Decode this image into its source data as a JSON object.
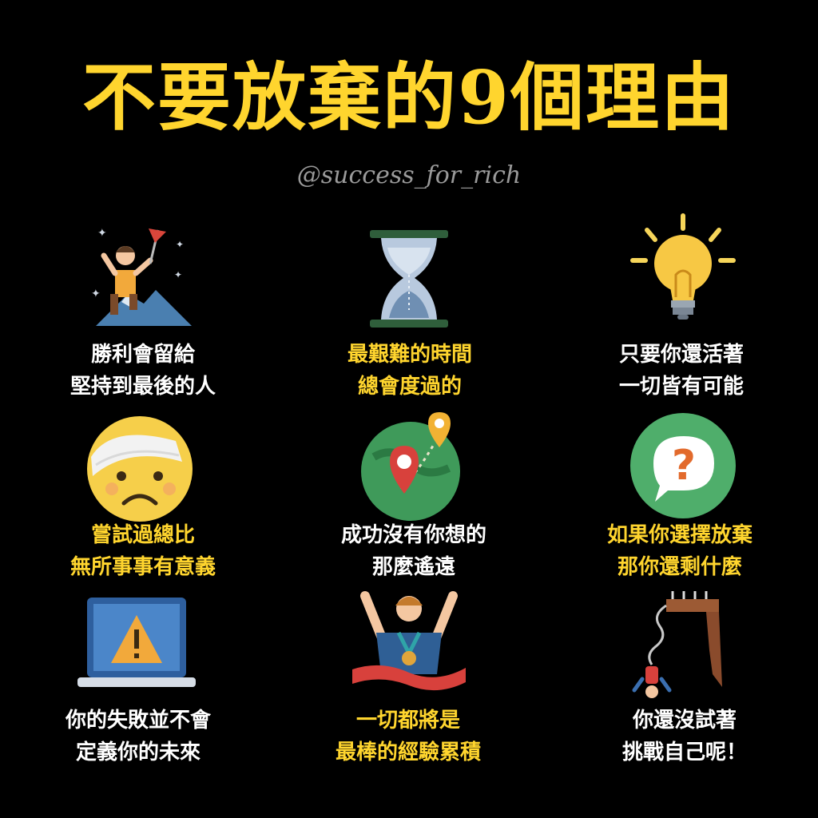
{
  "title": "不要放棄的9個理由",
  "watermark": "@success_for_rich",
  "colors": {
    "background": "#000000",
    "accent_yellow": "#FFD52E",
    "text_white": "#FFFFFF"
  },
  "reasons": [
    {
      "icon": "mountain-climber-flag-icon",
      "color": "white",
      "lines": [
        "勝利會留給",
        "堅持到最後的人"
      ]
    },
    {
      "icon": "hourglass-icon",
      "color": "yellow",
      "lines": [
        "最艱難的時間",
        "總會度過的"
      ]
    },
    {
      "icon": "lightbulb-icon",
      "color": "white",
      "lines": [
        "只要你還活著",
        "一切皆有可能"
      ]
    },
    {
      "icon": "bandaged-face-icon",
      "color": "yellow",
      "lines": [
        "嘗試過總比",
        "無所事事有意義"
      ]
    },
    {
      "icon": "map-pins-globe-icon",
      "color": "white",
      "lines": [
        "成功沒有你想的",
        "那麼遙遠"
      ]
    },
    {
      "icon": "question-bubble-icon",
      "color": "yellow",
      "lines": [
        "如果你選擇放棄",
        "那你還剩什麼"
      ]
    },
    {
      "icon": "laptop-warning-icon",
      "color": "white",
      "lines": [
        "你的失敗並不會",
        "定義你的未來"
      ]
    },
    {
      "icon": "winner-medal-icon",
      "color": "yellow",
      "lines": [
        "一切都將是",
        "最棒的經驗累積"
      ]
    },
    {
      "icon": "bungee-jump-icon",
      "color": "white",
      "lines": [
        "你還沒試著",
        "挑戰自己呢！"
      ]
    }
  ]
}
